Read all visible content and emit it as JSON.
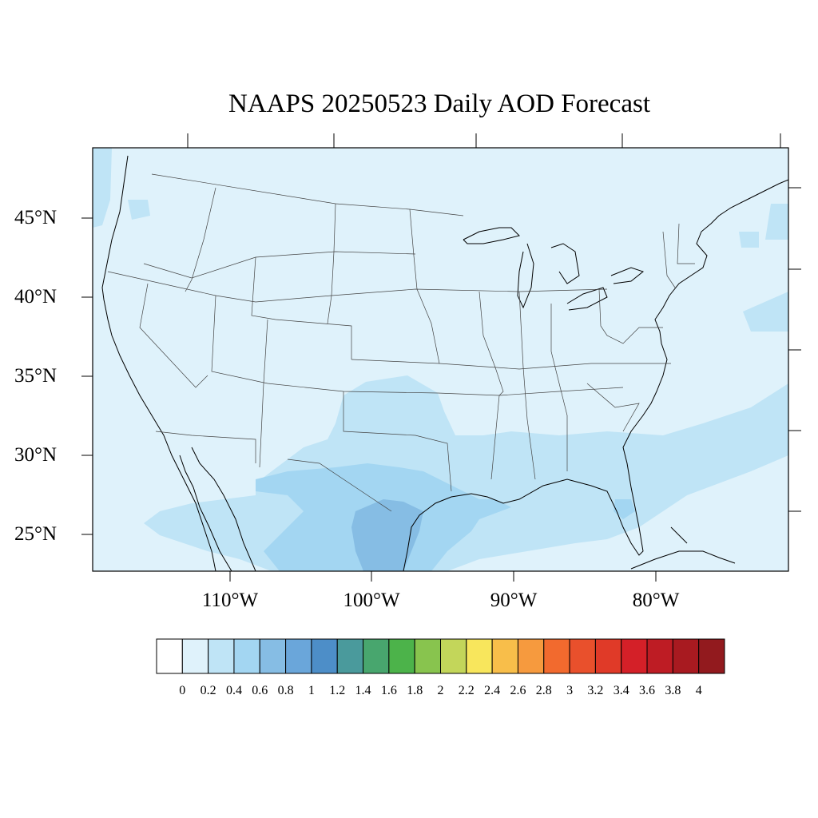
{
  "title": "NAAPS 20250523 Daily AOD Forecast",
  "map": {
    "region": "Contiguous United States",
    "projection": "lat-lon",
    "lon_range": [
      -119,
      -70
    ],
    "lat_range": [
      22.5,
      49.3
    ],
    "background_level_color": "#dff2fb",
    "lat_ticks": [
      {
        "value": 45,
        "label": "45°N"
      },
      {
        "value": 40,
        "label": "40°N"
      },
      {
        "value": 35,
        "label": "35°N"
      },
      {
        "value": 30,
        "label": "30°N"
      },
      {
        "value": 25,
        "label": "25°N"
      }
    ],
    "lon_ticks": [
      {
        "value": -110,
        "label": "110°W"
      },
      {
        "value": -100,
        "label": "100°W"
      },
      {
        "value": -90,
        "label": "90°W"
      },
      {
        "value": -80,
        "label": "80°W"
      }
    ]
  },
  "aod_regions": [
    {
      "level": "0.2-0.4",
      "color": "#bfe4f6",
      "area": "Southern Plains, Texas, Gulf Coast, Florida, western Atlantic"
    },
    {
      "level": "0.4-0.6",
      "color": "#a3d6f2",
      "area": "Central and south Texas, Gulf of Mexico"
    },
    {
      "level": "0.6-0.8",
      "color": "#86bde4",
      "area": "South Texas / northeast Mexico"
    }
  ],
  "colorbar": {
    "ticks": [
      "0",
      "0.2",
      "0.4",
      "0.6",
      "0.8",
      "1",
      "1.2",
      "1.4",
      "1.6",
      "1.8",
      "2",
      "2.2",
      "2.4",
      "2.6",
      "2.8",
      "3",
      "3.2",
      "3.4",
      "3.6",
      "3.8",
      "4"
    ],
    "colors": [
      "#ffffff",
      "#dff2fb",
      "#bfe4f6",
      "#a3d6f2",
      "#86bde4",
      "#6aa6da",
      "#4d8ec8",
      "#4a9a9c",
      "#48a66e",
      "#4cb34a",
      "#88c44e",
      "#c3d65a",
      "#f8e65c",
      "#f8be4a",
      "#f69a3e",
      "#f26a2e",
      "#e9502c",
      "#e03a28",
      "#d42028",
      "#be1c24",
      "#a81a20",
      "#921a1e"
    ]
  }
}
